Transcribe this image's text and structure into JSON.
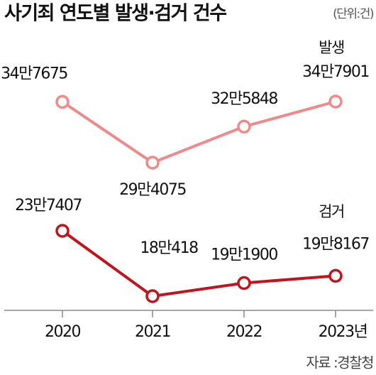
{
  "chart_data": {
    "type": "line",
    "title": "사기죄 연도별 발생·검거 건수",
    "unit": "(단위:건)",
    "source": "자료 :경찰청",
    "categories": [
      "2020",
      "2021",
      "2022",
      "2023년"
    ],
    "series": [
      {
        "name": "발생",
        "color": "#ef8a8a",
        "values": [
          347675,
          294075,
          325848,
          347901
        ],
        "value_labels": [
          "34만7675",
          "29만4075",
          "32만5848",
          "34만7901"
        ]
      },
      {
        "name": "검거",
        "color": "#c0141e",
        "values": [
          237407,
          180418,
          191900,
          198167
        ],
        "value_labels": [
          "23만7407",
          "18만418",
          "19만1900",
          "19만8167"
        ]
      }
    ]
  }
}
